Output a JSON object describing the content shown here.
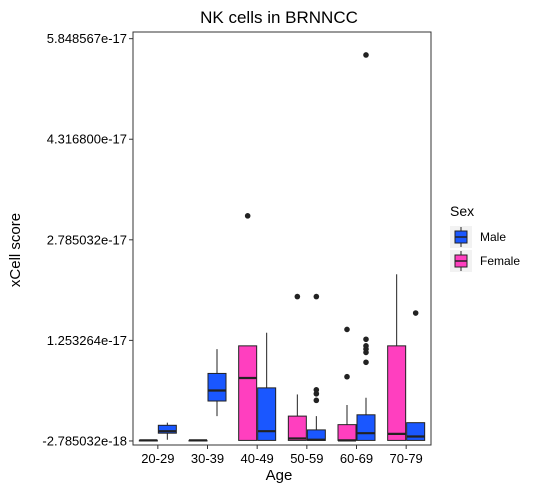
{
  "chart_data": {
    "type": "boxplot",
    "title": "NK cells in BRNNCC",
    "xlabel": "Age",
    "ylabel": "xCell score",
    "categories": [
      "20-29",
      "30-39",
      "40-49",
      "50-59",
      "60-69",
      "70-79"
    ],
    "y_ticks": [
      {
        "value": -2.785032e-18,
        "label": "-2.785032e-18"
      },
      {
        "value": 1.253264e-17,
        "label": "1.253264e-17"
      },
      {
        "value": 2.785032e-17,
        "label": "2.785032e-17"
      },
      {
        "value": 4.3168e-17,
        "label": "4.316800e-17"
      },
      {
        "value": 5.848567e-17,
        "label": "5.848567e-17"
      }
    ],
    "ylim": [
      -3.4e-18,
      5.95e-17
    ],
    "legend": {
      "title": "Sex",
      "position": "right"
    },
    "grid": false,
    "series": [
      {
        "name": "Female",
        "color": "#FF3FBF",
        "boxes": [
          {
            "category": "20-29",
            "min": -2.7e-18,
            "q1": -2.7e-18,
            "median": -2.7e-18,
            "q3": -2.7e-18,
            "max": -2.7e-18,
            "outliers": []
          },
          {
            "category": "30-39",
            "min": -2.7e-18,
            "q1": -2.7e-18,
            "median": -2.7e-18,
            "q3": -2.7e-18,
            "max": -2.7e-18,
            "outliers": []
          },
          {
            "category": "40-49",
            "min": -2.7e-18,
            "q1": -2.7e-18,
            "median": 6.8e-18,
            "q3": 1.17e-17,
            "max": 1.17e-17,
            "outliers": [
              3.15e-17
            ]
          },
          {
            "category": "50-59",
            "min": -2.7e-18,
            "q1": -2.7e-18,
            "median": -2.4e-18,
            "q3": 1e-18,
            "max": 4.3e-18,
            "outliers": [
              1.92e-17
            ]
          },
          {
            "category": "60-69",
            "min": -2.7e-18,
            "q1": -2.7e-18,
            "median": -2.7e-18,
            "q3": -3e-19,
            "max": 2.7e-18,
            "outliers": [
              7e-18,
              1.42e-17
            ]
          },
          {
            "category": "70-79",
            "min": -2.7e-18,
            "q1": -2.7e-18,
            "median": -1.7e-18,
            "q3": 1.17e-17,
            "max": 2.26e-17,
            "outliers": []
          }
        ]
      },
      {
        "name": "Male",
        "color": "#1A57FF",
        "boxes": [
          {
            "category": "20-29",
            "min": -2.6e-18,
            "q1": -1.6e-18,
            "median": -1.3e-18,
            "q3": -4e-19,
            "max": 0.0,
            "outliers": []
          },
          {
            "category": "30-39",
            "min": 1e-18,
            "q1": 3.3e-18,
            "median": 4.9e-18,
            "q3": 7.5e-18,
            "max": 1.12e-17,
            "outliers": []
          },
          {
            "category": "40-49",
            "min": -2.7e-18,
            "q1": -2.7e-18,
            "median": -1.3e-18,
            "q3": 5.3e-18,
            "max": 1.37e-17,
            "outliers": []
          },
          {
            "category": "50-59",
            "min": -2.7e-18,
            "q1": -2.7e-18,
            "median": -2.6e-18,
            "q3": -1.1e-18,
            "max": 1e-18,
            "outliers": [
              1.92e-17,
              3.4e-18,
              4.4e-18,
              5e-18
            ]
          },
          {
            "category": "60-69",
            "min": -2.7e-18,
            "q1": -2.7e-18,
            "median": -1.6e-18,
            "q3": 1.2e-18,
            "max": 3.8e-18,
            "outliers": [
              1.27e-17,
              1.17e-17,
              1.12e-17,
              1.07e-17,
              9.2e-18,
              5.6e-17
            ]
          },
          {
            "category": "70-79",
            "min": -2.7e-18,
            "q1": -2.7e-18,
            "median": -2.1e-18,
            "q3": 0.0,
            "max": 0.0,
            "outliers": [
              1.67e-17
            ]
          }
        ]
      }
    ]
  }
}
